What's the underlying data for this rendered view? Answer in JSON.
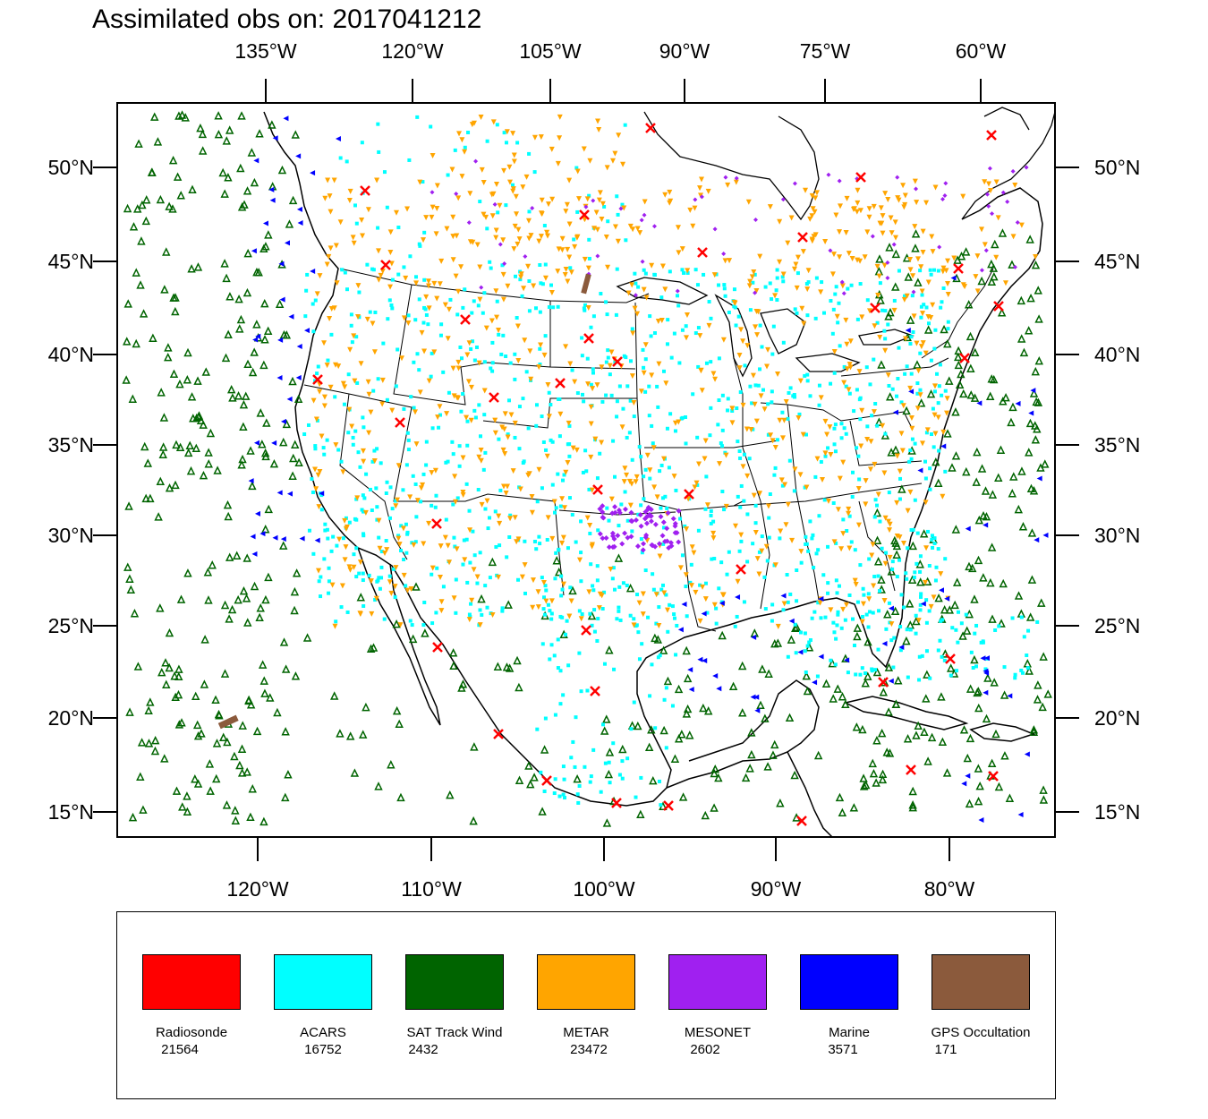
{
  "title": "Assimilated obs on: 2017041212",
  "map": {
    "top_lon_labels": [
      "135°W",
      "120°W",
      "105°W",
      "90°W",
      "75°W",
      "60°W"
    ],
    "bottom_lon_labels": [
      "120°W",
      "110°W",
      "100°W",
      "90°W",
      "80°W"
    ],
    "lat_labels": [
      "50°N",
      "45°N",
      "40°N",
      "35°N",
      "30°N",
      "25°N",
      "20°N",
      "15°N"
    ]
  },
  "legend": [
    {
      "name": "Radiosonde",
      "count": "21564",
      "color": "#ff0000",
      "marker": "x"
    },
    {
      "name": "ACARS",
      "count": "16752",
      "color": "#00ffff",
      "marker": "square"
    },
    {
      "name": "SAT Track Wind",
      "count": "2432",
      "color": "#006400",
      "marker": "triangle-up"
    },
    {
      "name": "METAR",
      "count": "23472",
      "color": "#ffa500",
      "marker": "triangle-down"
    },
    {
      "name": "MESONET",
      "count": "2602",
      "color": "#a020f0",
      "marker": "diamond"
    },
    {
      "name": "Marine",
      "count": "3571",
      "color": "#0000ff",
      "marker": "triangle-left"
    },
    {
      "name": "GPS Occultation",
      "count": "171",
      "color": "#8b5a3c",
      "marker": "bar"
    }
  ]
}
